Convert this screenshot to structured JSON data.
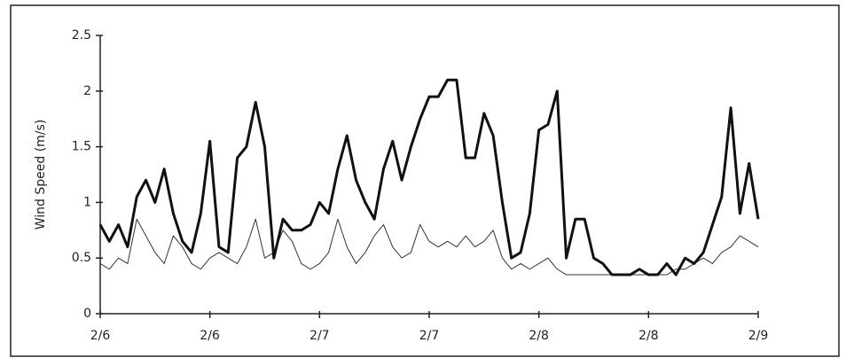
{
  "chart_data": {
    "type": "line",
    "y_label": "Wind Speed (m/s)",
    "x": [
      0,
      1,
      2,
      3,
      4,
      5,
      6,
      7,
      8,
      9,
      10,
      11,
      12,
      13,
      14,
      15,
      16,
      17,
      18,
      19,
      20,
      21,
      22,
      23,
      24,
      25,
      26,
      27,
      28,
      29,
      30,
      31,
      32,
      33,
      34,
      35,
      36,
      37,
      38,
      39,
      40,
      41,
      42,
      43,
      44,
      45,
      46,
      47,
      48,
      49,
      50,
      51,
      52,
      53,
      54,
      55,
      56,
      57,
      58,
      59,
      60,
      61,
      62,
      63,
      64,
      65,
      66,
      67,
      68,
      69,
      70,
      71,
      72
    ],
    "series": [
      {
        "color": "#111111",
        "width": 3,
        "values": [
          0.8,
          0.65,
          0.8,
          0.6,
          1.05,
          1.2,
          1.0,
          1.3,
          0.9,
          0.65,
          0.55,
          0.9,
          1.55,
          0.6,
          0.55,
          1.4,
          1.5,
          1.9,
          1.5,
          0.5,
          0.85,
          0.75,
          0.75,
          0.8,
          1.0,
          0.9,
          1.3,
          1.6,
          1.2,
          1.0,
          0.85,
          1.3,
          1.55,
          1.2,
          1.5,
          1.75,
          1.95,
          1.95,
          2.1,
          2.1,
          1.4,
          1.4,
          1.8,
          1.6,
          1.0,
          0.5,
          0.55,
          0.9,
          1.65,
          1.7,
          2.0,
          0.5,
          0.85,
          0.85,
          0.5,
          0.45,
          0.35,
          0.35,
          0.35,
          0.4,
          0.35,
          0.35,
          0.45,
          0.35,
          0.5,
          0.45,
          0.55,
          0.8,
          1.05,
          1.85,
          0.9,
          1.35,
          0.85
        ]
      },
      {
        "color": "#333333",
        "width": 1,
        "values": [
          0.45,
          0.4,
          0.5,
          0.45,
          0.85,
          0.7,
          0.55,
          0.45,
          0.7,
          0.6,
          0.45,
          0.4,
          0.5,
          0.55,
          0.5,
          0.45,
          0.6,
          0.85,
          0.5,
          0.55,
          0.75,
          0.65,
          0.45,
          0.4,
          0.45,
          0.55,
          0.85,
          0.6,
          0.45,
          0.55,
          0.7,
          0.8,
          0.6,
          0.5,
          0.55,
          0.8,
          0.65,
          0.6,
          0.65,
          0.6,
          0.7,
          0.6,
          0.65,
          0.75,
          0.5,
          0.4,
          0.45,
          0.4,
          0.45,
          0.5,
          0.4,
          0.35,
          0.35,
          0.35,
          0.35,
          0.35,
          0.35,
          0.35,
          0.35,
          0.35,
          0.35,
          0.35,
          0.35,
          0.4,
          0.4,
          0.45,
          0.5,
          0.45,
          0.55,
          0.6,
          0.7,
          0.65,
          0.6
        ]
      }
    ],
    "xlim": [
      0,
      72
    ],
    "xticks": [
      {
        "value": 0,
        "label": "2/6"
      },
      {
        "value": 12,
        "label": "2/6"
      },
      {
        "value": 24,
        "label": "2/7"
      },
      {
        "value": 36,
        "label": "2/7"
      },
      {
        "value": 48,
        "label": "2/8"
      },
      {
        "value": 60,
        "label": "2/8"
      },
      {
        "value": 72,
        "label": "2/9"
      }
    ],
    "ylim": [
      0,
      2.5
    ],
    "yticks": [
      0,
      0.5,
      1,
      1.5,
      2,
      2.5
    ]
  }
}
